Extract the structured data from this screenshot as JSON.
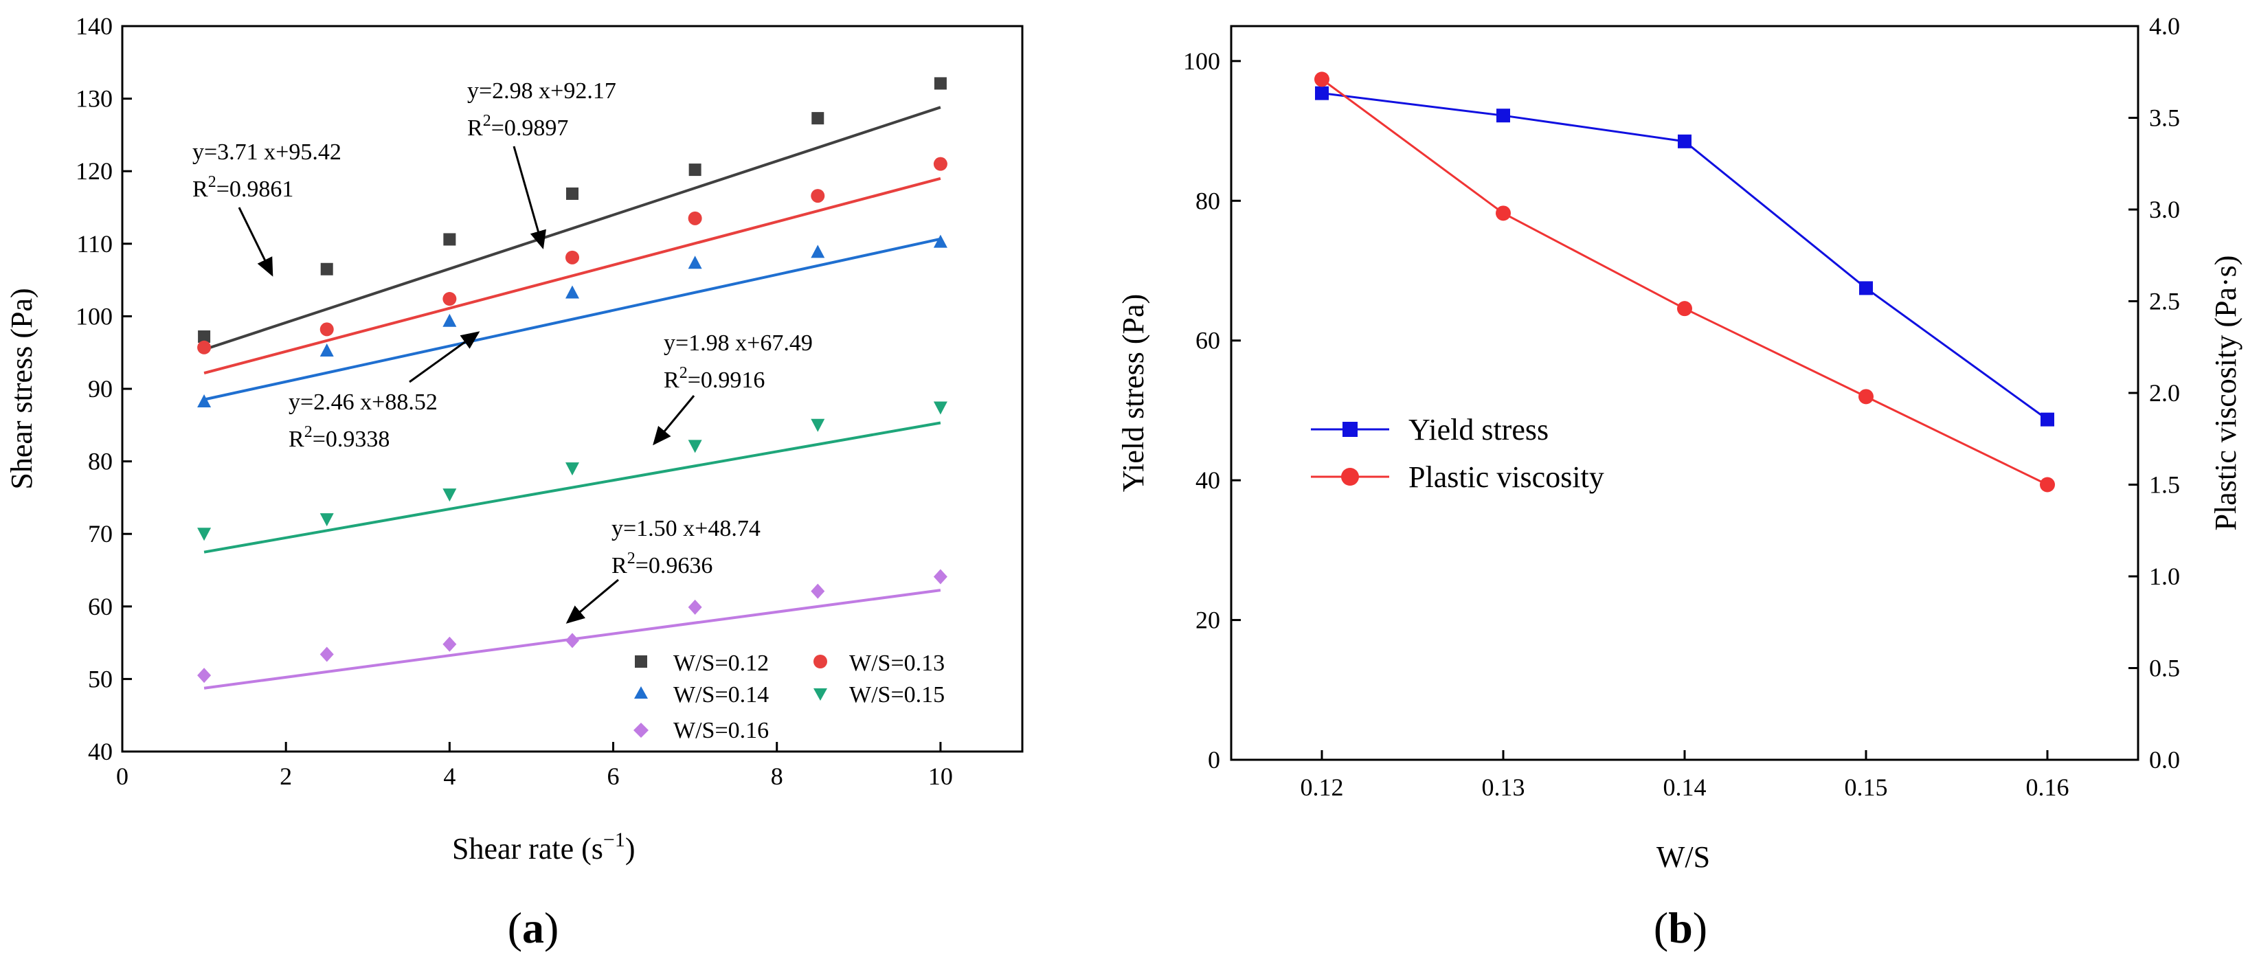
{
  "chart_data": [
    {
      "type": "scatter",
      "panel_label": "(a)",
      "panel_letter": "a",
      "xlabel": "Shear rate (s",
      "xlabel_sup": "−1",
      "xlabel_close": ")",
      "ylabel": "Shear stress (Pa)",
      "xlim": [
        0,
        11
      ],
      "ylim": [
        40,
        140
      ],
      "xticks": [
        0,
        2,
        4,
        6,
        8,
        10
      ],
      "yticks": [
        40,
        50,
        60,
        70,
        80,
        90,
        100,
        110,
        120,
        130,
        140
      ],
      "legend_position": "bottom-right",
      "series": [
        {
          "name": "W/S=0.12",
          "color": "#404040",
          "marker": "square",
          "x": [
            1,
            2.5,
            4,
            5.5,
            7,
            8.5,
            10
          ],
          "y": [
            97.2,
            106.5,
            110.6,
            116.9,
            120.2,
            127.3,
            132.1
          ],
          "fit": {
            "slope": 3.71,
            "intercept": 95.42
          },
          "equation": "y=3.71 x+95.42",
          "r2": "=0.9861"
        },
        {
          "name": "W/S=0.13",
          "color": "#e8403e",
          "marker": "circle",
          "x": [
            1,
            2.5,
            4,
            5.5,
            7,
            8.5,
            10
          ],
          "y": [
            95.7,
            98.2,
            102.4,
            108.1,
            113.5,
            116.6,
            121.0
          ],
          "fit": {
            "slope": 2.98,
            "intercept": 92.17
          },
          "equation": "y=2.98 x+92.17",
          "r2": "=0.9897"
        },
        {
          "name": "W/S=0.14",
          "color": "#1f6fd0",
          "marker": "triangle-up",
          "x": [
            1,
            2.5,
            4,
            5.5,
            7,
            8.5,
            10
          ],
          "y": [
            88.3,
            95.3,
            99.4,
            103.3,
            107.4,
            108.9,
            110.3
          ],
          "fit": {
            "slope": 2.46,
            "intercept": 88.52
          },
          "equation": "y=2.46 x+88.52",
          "r2": "=0.9338"
        },
        {
          "name": "W/S=0.15",
          "color": "#1ea67a",
          "marker": "triangle-down",
          "x": [
            1,
            2.5,
            4,
            5.5,
            7,
            8.5,
            10
          ],
          "y": [
            70.0,
            72.0,
            75.4,
            79.0,
            82.1,
            85.0,
            87.4
          ],
          "fit": {
            "slope": 1.98,
            "intercept": 67.49
          },
          "equation": "y=1.98 x+67.49",
          "r2": "=0.9916"
        },
        {
          "name": "W/S=0.16",
          "color": "#c07be3",
          "marker": "diamond",
          "x": [
            1,
            2.5,
            4,
            5.5,
            7,
            8.5,
            10
          ],
          "y": [
            50.5,
            53.4,
            54.8,
            55.3,
            59.9,
            62.1,
            64.1
          ],
          "fit": {
            "slope": 1.5,
            "intercept": 48.74
          },
          "equation": "y=1.50 x+48.74",
          "r2": "=0.9636"
        }
      ]
    },
    {
      "type": "line",
      "panel_label": "(b)",
      "panel_letter": "b",
      "xlabel": "W/S",
      "ylabel_left": "Yield stress (Pa)",
      "ylabel_right": "Plastic viscosity (Pa·s)",
      "categories": [
        "0.12",
        "0.13",
        "0.14",
        "0.15",
        "0.16"
      ],
      "x": [
        0.12,
        0.13,
        0.14,
        0.15,
        0.16
      ],
      "xlim": [
        0.115,
        0.165
      ],
      "ylim_left": [
        0,
        105
      ],
      "ylim_right": [
        0,
        4.0
      ],
      "yticks_left": [
        0,
        20,
        40,
        60,
        80,
        100
      ],
      "yticks_right": [
        "0.0",
        "0.5",
        "1.0",
        "1.5",
        "2.0",
        "2.5",
        "3.0",
        "3.5",
        "4.0"
      ],
      "legend_position": "center-left",
      "series": [
        {
          "name": "Yield stress",
          "axis": "left",
          "color": "#1010e0",
          "marker": "square",
          "values": [
            95.4,
            92.2,
            88.5,
            67.5,
            48.7
          ]
        },
        {
          "name": "Plastic viscosity",
          "axis": "right",
          "color": "#f03434",
          "marker": "circle",
          "values": [
            3.71,
            2.98,
            2.46,
            1.98,
            1.5
          ]
        }
      ]
    }
  ]
}
